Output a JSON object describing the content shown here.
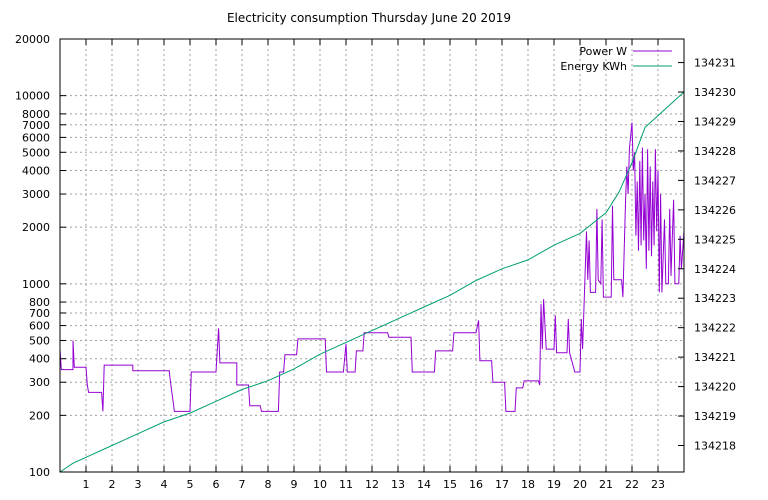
{
  "chart_data": {
    "type": "line",
    "title": "Electricity consumption Thursday June 20 2019",
    "xlabel": "",
    "ylabel": "",
    "x_ticks": [
      "1",
      "2",
      "3",
      "4",
      "5",
      "6",
      "7",
      "8",
      "9",
      "10",
      "11",
      "12",
      "13",
      "14",
      "15",
      "16",
      "17",
      "18",
      "19",
      "20",
      "21",
      "22",
      "23"
    ],
    "xlim": [
      0,
      24
    ],
    "y_left": {
      "scale": "log",
      "ylim": [
        100,
        20000
      ],
      "ticks": [
        "100",
        "200",
        "300",
        "400",
        "500",
        "600",
        "700",
        "800",
        "1000",
        "2000",
        "3000",
        "4000",
        "5000",
        "6000",
        "7000",
        "8000",
        "10000",
        "20000"
      ]
    },
    "y_right": {
      "scale": "linear",
      "ylim": [
        134217.1,
        134231.8
      ],
      "ticks": [
        "134218",
        "134219",
        "134220",
        "134221",
        "134222",
        "134223",
        "134224",
        "134225",
        "134226",
        "134227",
        "134228",
        "134229",
        "134230",
        "134231"
      ]
    },
    "legend_position": "top-right",
    "grid": true,
    "series": [
      {
        "name": "Power W",
        "axis": "left",
        "color": "#9400d3",
        "points": [
          [
            0,
            450
          ],
          [
            0.05,
            350
          ],
          [
            0.5,
            350
          ],
          [
            0.5,
            500
          ],
          [
            0.55,
            360
          ],
          [
            1,
            360
          ],
          [
            1.05,
            290
          ],
          [
            1.1,
            265
          ],
          [
            1.6,
            265
          ],
          [
            1.65,
            210
          ],
          [
            1.7,
            370
          ],
          [
            2.8,
            370
          ],
          [
            2.8,
            345
          ],
          [
            4.2,
            345
          ],
          [
            4.25,
            300
          ],
          [
            4.4,
            210
          ],
          [
            5.0,
            210
          ],
          [
            5.05,
            340
          ],
          [
            6.0,
            340
          ],
          [
            6.1,
            580
          ],
          [
            6.15,
            380
          ],
          [
            6.8,
            380
          ],
          [
            6.8,
            290
          ],
          [
            7.25,
            290
          ],
          [
            7.3,
            225
          ],
          [
            7.7,
            225
          ],
          [
            7.75,
            210
          ],
          [
            8.4,
            210
          ],
          [
            8.45,
            340
          ],
          [
            8.6,
            340
          ],
          [
            8.65,
            420
          ],
          [
            9.1,
            420
          ],
          [
            9.15,
            510
          ],
          [
            10.2,
            510
          ],
          [
            10.25,
            340
          ],
          [
            10.9,
            340
          ],
          [
            11.0,
            480
          ],
          [
            11.05,
            340
          ],
          [
            11.35,
            340
          ],
          [
            11.4,
            440
          ],
          [
            11.65,
            440
          ],
          [
            11.7,
            550
          ],
          [
            12.6,
            550
          ],
          [
            12.65,
            520
          ],
          [
            13.5,
            520
          ],
          [
            13.55,
            340
          ],
          [
            14.4,
            340
          ],
          [
            14.45,
            440
          ],
          [
            15.1,
            440
          ],
          [
            15.15,
            550
          ],
          [
            16.0,
            550
          ],
          [
            16.1,
            640
          ],
          [
            16.15,
            390
          ],
          [
            16.6,
            390
          ],
          [
            16.65,
            300
          ],
          [
            17.1,
            300
          ],
          [
            17.15,
            210
          ],
          [
            17.5,
            210
          ],
          [
            17.55,
            280
          ],
          [
            17.8,
            280
          ],
          [
            17.85,
            305
          ],
          [
            18.4,
            305
          ],
          [
            18.45,
            290
          ],
          [
            18.5,
            780
          ],
          [
            18.55,
            450
          ],
          [
            18.6,
            830
          ],
          [
            18.7,
            450
          ],
          [
            19.0,
            450
          ],
          [
            19.05,
            680
          ],
          [
            19.1,
            430
          ],
          [
            19.5,
            430
          ],
          [
            19.55,
            650
          ],
          [
            19.6,
            430
          ],
          [
            19.8,
            340
          ],
          [
            20.0,
            340
          ],
          [
            20.05,
            650
          ],
          [
            20.1,
            450
          ],
          [
            20.25,
            1900
          ],
          [
            20.3,
            1050
          ],
          [
            20.35,
            1700
          ],
          [
            20.4,
            900
          ],
          [
            20.6,
            900
          ],
          [
            20.65,
            2500
          ],
          [
            20.7,
            1050
          ],
          [
            20.8,
            1000
          ],
          [
            20.85,
            2200
          ],
          [
            20.9,
            850
          ],
          [
            21.2,
            850
          ],
          [
            21.25,
            2600
          ],
          [
            21.3,
            1050
          ],
          [
            21.6,
            1050
          ],
          [
            21.65,
            850
          ],
          [
            21.75,
            2700
          ],
          [
            21.8,
            4200
          ],
          [
            21.85,
            3000
          ],
          [
            21.9,
            5200
          ],
          [
            22.0,
            7200
          ],
          [
            22.05,
            4000
          ],
          [
            22.1,
            5000
          ],
          [
            22.15,
            1800
          ],
          [
            22.2,
            3500
          ],
          [
            22.25,
            1500
          ],
          [
            22.3,
            4500
          ],
          [
            22.35,
            1600
          ],
          [
            22.4,
            5300
          ],
          [
            22.45,
            1700
          ],
          [
            22.5,
            3000
          ],
          [
            22.55,
            1200
          ],
          [
            22.6,
            5200
          ],
          [
            22.65,
            1500
          ],
          [
            22.7,
            4200
          ],
          [
            22.75,
            1400
          ],
          [
            22.8,
            3500
          ],
          [
            22.85,
            1600
          ],
          [
            22.9,
            5200
          ],
          [
            22.95,
            1900
          ],
          [
            23.0,
            4000
          ],
          [
            23.05,
            900
          ],
          [
            23.1,
            3000
          ],
          [
            23.15,
            900
          ],
          [
            23.2,
            1400
          ],
          [
            23.25,
            2200
          ],
          [
            23.3,
            1000
          ],
          [
            23.4,
            1000
          ],
          [
            23.45,
            2500
          ],
          [
            23.5,
            1100
          ],
          [
            23.6,
            2800
          ],
          [
            23.65,
            1000
          ],
          [
            23.8,
            1000
          ],
          [
            23.85,
            1800
          ],
          [
            23.9,
            1200
          ],
          [
            24.0,
            1900
          ]
        ]
      },
      {
        "name": "Energy KWh",
        "axis": "right",
        "color": "#009e73",
        "points": [
          [
            0,
            134217.1
          ],
          [
            0.5,
            134217.4
          ],
          [
            1,
            134217.6
          ],
          [
            2,
            134218.0
          ],
          [
            3,
            134218.4
          ],
          [
            4,
            134218.8
          ],
          [
            5,
            134219.1
          ],
          [
            6,
            134219.5
          ],
          [
            7,
            134219.9
          ],
          [
            8,
            134220.2
          ],
          [
            9,
            134220.6
          ],
          [
            10,
            134221.1
          ],
          [
            11,
            134221.5
          ],
          [
            12,
            134221.9
          ],
          [
            13,
            134222.3
          ],
          [
            14,
            134222.7
          ],
          [
            15,
            134223.1
          ],
          [
            16,
            134223.6
          ],
          [
            17,
            134224.0
          ],
          [
            18,
            134224.3
          ],
          [
            19,
            134224.8
          ],
          [
            20,
            134225.2
          ],
          [
            21,
            134225.9
          ],
          [
            21.5,
            134226.6
          ],
          [
            22,
            134227.6
          ],
          [
            22.5,
            134228.8
          ],
          [
            23,
            134229.2
          ],
          [
            24,
            134230.0
          ]
        ]
      }
    ]
  }
}
